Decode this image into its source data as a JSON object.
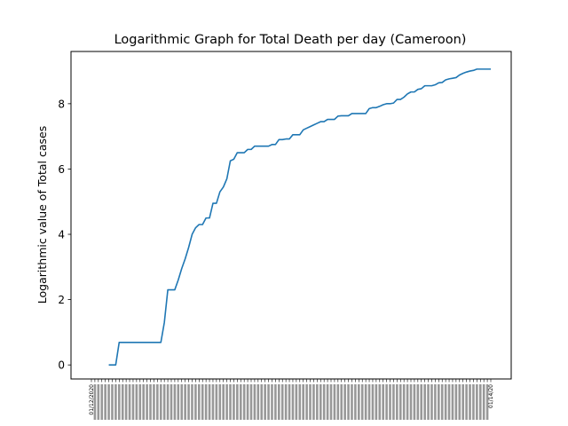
{
  "chart_data": {
    "type": "line",
    "title": "Logarithmic Graph for Total Death per day (Cameroon)",
    "xlabel": "",
    "ylabel": "Logarithmic value of Total cases",
    "yticks": [
      0,
      2,
      4,
      6,
      8
    ],
    "ylim": [
      -0.43,
      9.6
    ],
    "x_start": "01/12/2020",
    "x_end": "01/14/20",
    "grid": false,
    "legend": "none",
    "line_color": "#1f77b4",
    "series": [
      {
        "values": [
          null,
          null,
          null,
          null,
          null,
          0.0,
          0.0,
          0.0,
          0.69,
          0.69,
          0.69,
          0.69,
          0.69,
          0.69,
          0.69,
          0.69,
          0.69,
          0.69,
          0.69,
          0.69,
          0.69,
          1.3,
          2.3,
          2.3,
          2.3,
          2.6,
          2.95,
          3.25,
          3.6,
          4.0,
          4.2,
          4.3,
          4.3,
          4.5,
          4.5,
          4.95,
          4.95,
          5.3,
          5.45,
          5.7,
          6.25,
          6.3,
          6.5,
          6.5,
          6.5,
          6.6,
          6.6,
          6.7,
          6.7,
          6.7,
          6.7,
          6.7,
          6.75,
          6.75,
          6.9,
          6.9,
          6.92,
          6.92,
          7.05,
          7.05,
          7.05,
          7.2,
          7.25,
          7.3,
          7.35,
          7.4,
          7.45,
          7.45,
          7.52,
          7.52,
          7.52,
          7.62,
          7.63,
          7.63,
          7.63,
          7.7,
          7.7,
          7.7,
          7.7,
          7.7,
          7.85,
          7.88,
          7.88,
          7.92,
          7.97,
          8.0,
          8.0,
          8.02,
          8.13,
          8.13,
          8.2,
          8.3,
          8.36,
          8.36,
          8.44,
          8.46,
          8.55,
          8.55,
          8.55,
          8.58,
          8.64,
          8.65,
          8.73,
          8.76,
          8.78,
          8.8,
          8.88,
          8.93,
          8.97,
          9.0,
          9.02,
          9.06,
          9.06,
          9.06,
          9.06,
          9.06
        ]
      }
    ]
  }
}
